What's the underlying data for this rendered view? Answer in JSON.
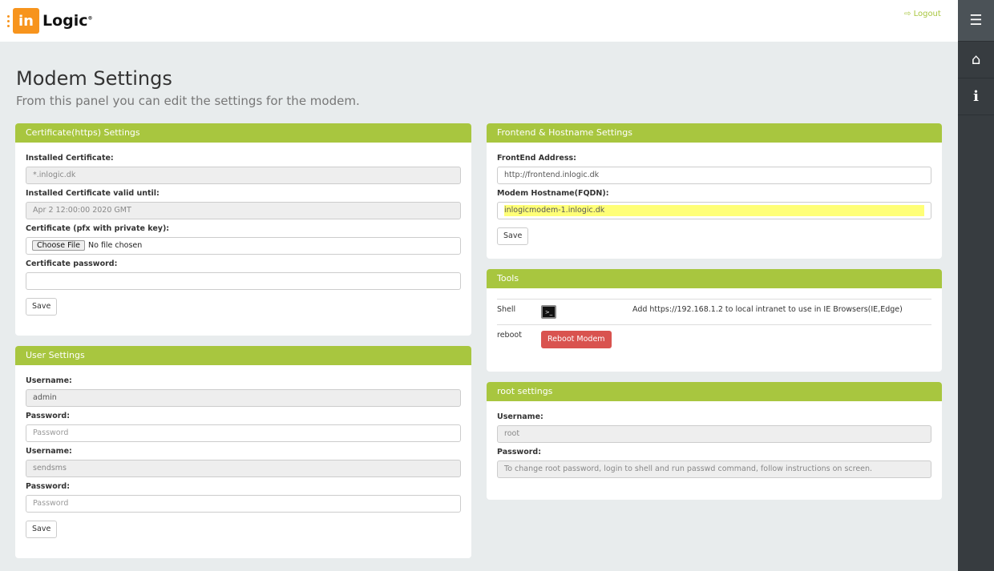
{
  "header": {
    "logo_in": "in",
    "logo_text": "Logic",
    "logout": "Logout"
  },
  "sidebar": {
    "menu_icon": "hamburger-icon",
    "home_icon": "home-icon",
    "info_icon": "info-icon"
  },
  "page": {
    "title": "Modem Settings",
    "subtitle": "From this panel you can edit the settings for the modem."
  },
  "cert": {
    "title": "Certificate(https) Settings",
    "installed_label": "Installed Certificate:",
    "installed_value": "*.inlogic.dk",
    "valid_label": "Installed Certificate valid until:",
    "valid_value": "Apr  2 12:00:00 2020 GMT",
    "file_label": "Certificate (pfx with private key):",
    "file_button": "Choose File",
    "file_status": "No file chosen",
    "password_label": "Certificate password:",
    "save": "Save"
  },
  "users": {
    "title": "User Settings",
    "u1_label": "Username:",
    "u1_value": "admin",
    "p1_label": "Password:",
    "p1_placeholder": "Password",
    "u2_label": "Username:",
    "u2_value": "sendsms",
    "p2_label": "Password:",
    "p2_placeholder": "Password",
    "save": "Save"
  },
  "frontend": {
    "title": "Frontend & Hostname Settings",
    "addr_label": "FrontEnd Address:",
    "addr_value": "http://frontend.inlogic.dk",
    "host_label": "Modem Hostname(FQDN):",
    "host_value": "inlogicmodem-1.inlogic.dk",
    "save": "Save"
  },
  "tools": {
    "title": "Tools",
    "shell_label": "Shell",
    "shell_icon": ">_",
    "shell_note": "Add https://192.168.1.2 to local intranet to use in IE Browsers(IE,Edge)",
    "reboot_label": "reboot",
    "reboot_button": "Reboot Modem"
  },
  "root": {
    "title": "root settings",
    "user_label": "Username:",
    "user_value": "root",
    "pw_label": "Password:",
    "pw_value": "To change root password, login to shell and run passwd command, follow instructions on screen."
  }
}
